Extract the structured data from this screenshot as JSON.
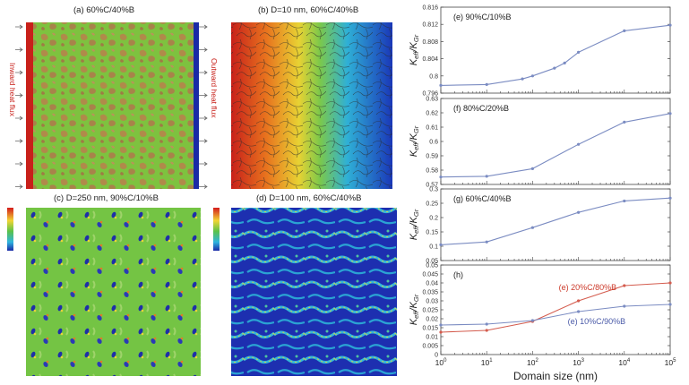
{
  "panels": {
    "a": {
      "title": "(a)  60%C/40%B",
      "left_label": "Inward heat flux",
      "right_label": "Outward heat flux"
    },
    "b": {
      "title": "(b)  D=10 nm, 60%C/40%B"
    },
    "c": {
      "title": "(c)  D=250 nm, 90%C/10%B"
    },
    "d": {
      "title": "(d)  D=100 nm, 60%C/40%B"
    }
  },
  "colors": {
    "series_blue": "#7b8cc2",
    "series_red": "#d45c4e",
    "axis": "#444444",
    "label_red": "#cc3a2a",
    "label_blue": "#4a5aa8"
  },
  "chart_data": [
    {
      "type": "line",
      "panel": "e",
      "annotation": "(e) 90%C/10%B",
      "ylabel": "K_eff/K_Gr",
      "x_scale": "log",
      "xlim": [
        1,
        100000
      ],
      "ylim": [
        0.796,
        0.816
      ],
      "yticks": [
        0.796,
        0.8,
        0.804,
        0.808,
        0.812,
        0.816
      ],
      "ytick_labels": [
        "0.796",
        "0.8",
        "0.804",
        "0.808",
        "0.812",
        "0.816"
      ],
      "series": [
        {
          "x": [
            1,
            10,
            60,
            100,
            300,
            500,
            1000,
            10000,
            100000
          ],
          "y": [
            0.7978,
            0.798,
            0.7993,
            0.8,
            0.8018,
            0.803,
            0.8055,
            0.8105,
            0.8118
          ],
          "color": "#7b8cc2"
        }
      ]
    },
    {
      "type": "line",
      "panel": "f",
      "annotation": "(f) 80%C/20%B",
      "ylabel": "K_eff/K_Gr",
      "x_scale": "log",
      "xlim": [
        1,
        100000
      ],
      "ylim": [
        0.57,
        0.63
      ],
      "yticks": [
        0.57,
        0.58,
        0.59,
        0.6,
        0.61,
        0.62,
        0.63
      ],
      "ytick_labels": [
        "0.57",
        "0.58",
        "0.59",
        "0.6",
        "0.61",
        "0.62",
        "0.63"
      ],
      "series": [
        {
          "x": [
            1,
            10,
            100,
            1000,
            10000,
            100000
          ],
          "y": [
            0.5752,
            0.5757,
            0.581,
            0.598,
            0.6135,
            0.6195
          ],
          "color": "#7b8cc2"
        }
      ]
    },
    {
      "type": "line",
      "panel": "g",
      "annotation": "(g) 60%C/40%B",
      "ylabel": "K_eff/K_Gr",
      "x_scale": "log",
      "xlim": [
        1,
        100000
      ],
      "ylim": [
        0.05,
        0.3
      ],
      "yticks": [
        0.05,
        0.1,
        0.15,
        0.2,
        0.25,
        0.3
      ],
      "ytick_labels": [
        "0.05",
        "0.1",
        "0.15",
        "0.2",
        "0.25",
        "0.3"
      ],
      "series": [
        {
          "x": [
            1,
            10,
            100,
            1000,
            10000,
            100000
          ],
          "y": [
            0.105,
            0.115,
            0.165,
            0.218,
            0.258,
            0.268
          ],
          "color": "#7b8cc2"
        }
      ]
    },
    {
      "type": "line",
      "panel": "h",
      "annotation": "(h)",
      "ylabel": "K_eff/K_Gr",
      "xlabel": "Domain size (nm)",
      "x_scale": "log",
      "xlim": [
        1,
        100000
      ],
      "ylim": [
        0,
        0.05
      ],
      "yticks": [
        0,
        0.005,
        0.01,
        0.015,
        0.02,
        0.025,
        0.03,
        0.035,
        0.04,
        0.045,
        0.05
      ],
      "ytick_labels": [
        "0",
        "0.005",
        "0.01",
        "0.015",
        "0.02",
        "0.025",
        "0.03",
        "0.035",
        "0.04",
        "0.045",
        "0.05"
      ],
      "xticks": [
        1,
        10,
        100,
        1000,
        10000,
        100000
      ],
      "xtick_labels": [
        "10^0",
        "10^1",
        "10^2",
        "10^3",
        "10^4",
        "10^5"
      ],
      "series": [
        {
          "name": "(e) 20%C/80%B",
          "x": [
            1,
            10,
            100,
            1000,
            10000,
            100000
          ],
          "y": [
            0.0125,
            0.0135,
            0.0185,
            0.03,
            0.0385,
            0.04
          ],
          "color": "#d45c4e"
        },
        {
          "name": "(e) 10%C/90%B",
          "x": [
            1,
            10,
            100,
            1000,
            10000,
            100000
          ],
          "y": [
            0.0165,
            0.017,
            0.019,
            0.024,
            0.027,
            0.028
          ],
          "color": "#7b8cc2"
        }
      ]
    }
  ]
}
